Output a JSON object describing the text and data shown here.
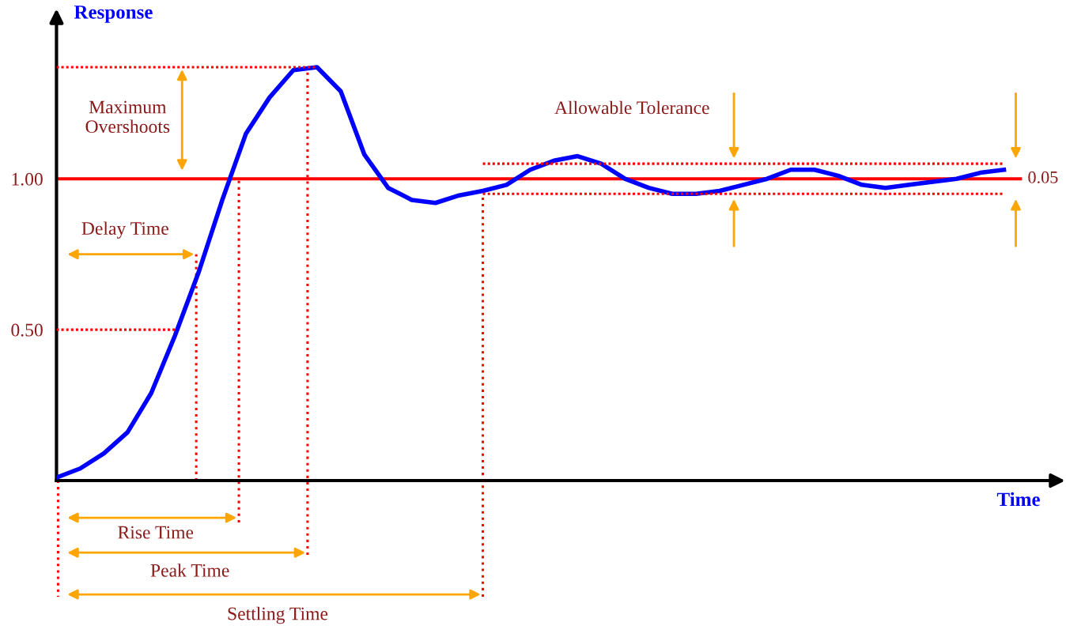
{
  "chart_data": {
    "type": "line",
    "xlabel": "Time",
    "ylabel": "Response",
    "categories": [
      null,
      null,
      null,
      null,
      null,
      null,
      null,
      null,
      null,
      null,
      null,
      null,
      null,
      null,
      null,
      null,
      null,
      null,
      null,
      null,
      null,
      null,
      null,
      null,
      null,
      null,
      null,
      null,
      null,
      null,
      null,
      null,
      null,
      null,
      null,
      null,
      null,
      null,
      null,
      null,
      null
    ],
    "series": [
      {
        "color": "#0000ff",
        "values": [
          0.01,
          0.04,
          0.09,
          0.16,
          0.29,
          0.48,
          0.69,
          0.93,
          1.15,
          1.27,
          1.36,
          1.37,
          1.29,
          1.08,
          0.97,
          0.93,
          0.92,
          0.945,
          0.96,
          0.98,
          1.03,
          1.06,
          1.075,
          1.05,
          1.0,
          0.97,
          0.95,
          0.95,
          0.96,
          0.98,
          1.0,
          1.03,
          1.03,
          1.01,
          0.98,
          0.97,
          0.98,
          0.99,
          1.0,
          1.02,
          1.03
        ]
      },
      {
        "color": "#ff0000",
        "line_style": "dotted",
        "values": [
          null,
          null,
          null,
          null,
          null,
          null,
          null,
          null,
          null,
          null,
          null,
          null,
          null,
          null,
          null,
          null,
          null,
          null,
          1.05,
          1.05,
          1.05,
          1.05,
          1.05,
          1.05,
          1.05,
          1.05,
          1.05,
          1.05,
          1.05,
          1.05,
          1.05,
          1.05,
          1.05,
          1.05,
          1.05,
          1.05,
          1.05,
          1.05,
          1.05,
          1.05,
          1.05
        ]
      },
      {
        "color": "#ff0000",
        "line_style": "dotted",
        "values": [
          null,
          null,
          null,
          null,
          null,
          null,
          null,
          null,
          null,
          null,
          null,
          null,
          null,
          null,
          null,
          null,
          null,
          null,
          0.95,
          0.95,
          0.95,
          0.95,
          0.95,
          0.95,
          0.95,
          0.95,
          0.95,
          0.95,
          0.95,
          0.95,
          0.95,
          0.95,
          0.95,
          0.95,
          0.95,
          0.95,
          0.95,
          0.95,
          0.95,
          0.95,
          0.95
        ]
      },
      {
        "color": "#ff0000",
        "line_style": "dotted",
        "values": [
          1.37,
          1.37,
          1.37,
          1.37,
          1.37,
          1.37,
          1.37,
          1.37,
          1.37,
          1.37,
          1.37,
          1.37,
          null,
          null,
          null,
          null,
          null,
          null,
          null,
          null,
          null,
          null,
          null,
          null,
          null,
          null,
          null,
          null,
          null,
          null,
          null,
          null,
          null,
          null,
          null,
          null,
          null,
          null,
          null,
          null,
          null
        ]
      },
      {
        "color": "#ff0000",
        "line_style": "dotted",
        "values": [
          0.5,
          0.5,
          0.5,
          0.5,
          0.5,
          0.5,
          null,
          null,
          null,
          null,
          null,
          null,
          null,
          null,
          null,
          null,
          null,
          null,
          null,
          null,
          null,
          null,
          null,
          null,
          null,
          null,
          null,
          null,
          null,
          null,
          null,
          null,
          null,
          null,
          null,
          null,
          null,
          null,
          null,
          null,
          null
        ]
      }
    ],
    "ylim": [
      0,
      1.54
    ],
    "yticks": [
      {
        "value": 0.5,
        "label": "0.50"
      },
      {
        "value": 1.0,
        "label": "1.00"
      }
    ],
    "ref_lines": [
      {
        "axis": "y",
        "value": 1.0,
        "color": "#ff0000",
        "line_style": "solid"
      }
    ],
    "tick_labels": "y",
    "grid": false,
    "legend": false,
    "annotations": [
      "Maximum\nOvershoots",
      "Delay Time",
      "Rise Time",
      "Peak Time",
      "Settling Time",
      "Allowable Tolerance",
      "0.05"
    ]
  }
}
